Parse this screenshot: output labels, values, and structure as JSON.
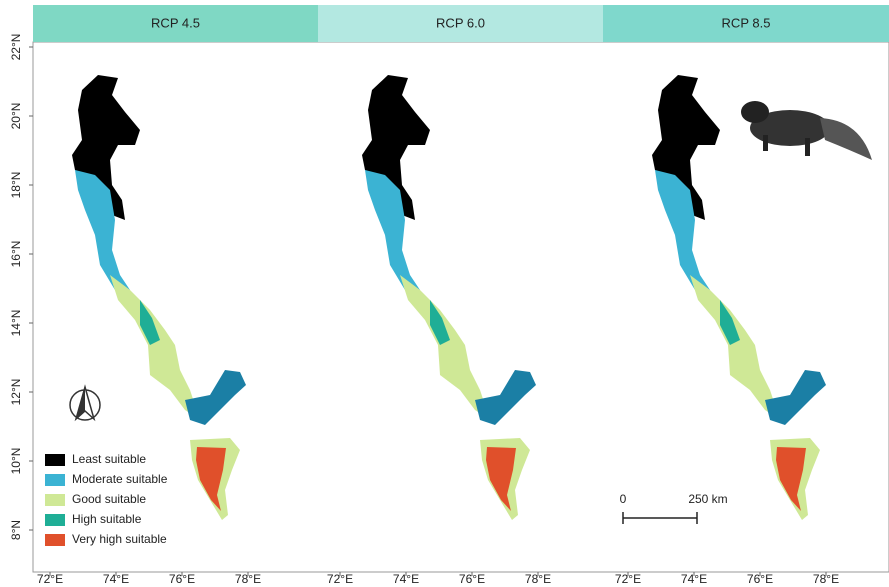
{
  "panels": [
    {
      "title": "RCP 4.5",
      "color": "#7fd8c4",
      "xticks": [
        "72°E",
        "74°E",
        "76°E",
        "78°E"
      ]
    },
    {
      "title": "RCP 6.0",
      "color": "#b3e8e1",
      "xticks": [
        "72°E",
        "74°E",
        "76°E",
        "78°E"
      ]
    },
    {
      "title": "RCP 8.5",
      "color": "#7fd8cc",
      "xticks": [
        "72°E",
        "74°E",
        "76°E",
        "78°E"
      ]
    }
  ],
  "yticks": [
    "22°N",
    "20°N",
    "18°N",
    "16°N",
    "14°N",
    "12°N",
    "10°N",
    "8°N"
  ],
  "legend": [
    {
      "label": "Least suitable",
      "color": "#000000"
    },
    {
      "label": "Moderate suitable",
      "color": "#3bb3d3"
    },
    {
      "label": "Good suitable",
      "color": "#cfe896"
    },
    {
      "label": "High suitable",
      "color": "#1fae96"
    },
    {
      "label": "Very high suitable",
      "color": "#e0502b"
    }
  ],
  "scale_bar": {
    "start": "0",
    "end": "250 km"
  }
}
